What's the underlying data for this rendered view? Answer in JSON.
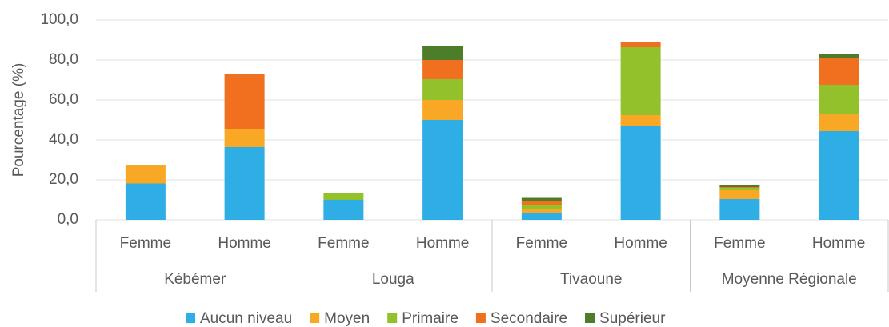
{
  "chart_data": {
    "type": "stacked_bar",
    "y_label": "Pourcentage (%)",
    "categories": [
      "Femme",
      "Homme",
      "Femme",
      "Homme",
      "Femme",
      "Homme",
      "Femme",
      "Homme"
    ],
    "groups": [
      "Kébémer",
      "Louga",
      "Tivaoune",
      "Moyenne Régionale"
    ],
    "series": [
      {
        "name": "Aucun niveau",
        "color": "#2eaee4",
        "values": [
          18.2,
          36.4,
          10,
          50,
          3.2,
          46.8,
          10.4,
          44.4
        ]
      },
      {
        "name": "Moyen",
        "color": "#f9a825",
        "values": [
          9.1,
          9.2,
          0,
          10,
          2,
          5.6,
          4.4,
          8.4
        ]
      },
      {
        "name": "Primaire",
        "color": "#92c12c",
        "values": [
          0,
          0,
          3.2,
          10.4,
          2,
          34,
          1.2,
          14.8
        ]
      },
      {
        "name": "Secondaire",
        "color": "#f07020",
        "values": [
          0,
          27.2,
          0,
          9.6,
          2,
          2.8,
          0.4,
          13.2
        ]
      },
      {
        "name": "Supérieur",
        "color": "#4e7d2a",
        "values": [
          0,
          0,
          0,
          6.8,
          1.8,
          0,
          0.8,
          2.4
        ]
      }
    ],
    "ylim": [
      0,
      100
    ],
    "yticks": [
      {
        "value": 0,
        "label": "0,0"
      },
      {
        "value": 20,
        "label": "20,0"
      },
      {
        "value": 40,
        "label": "40,0"
      },
      {
        "value": 60,
        "label": "60,0"
      },
      {
        "value": 80,
        "label": "80,0"
      },
      {
        "value": 100,
        "label": "100,0"
      }
    ],
    "grid": true,
    "legend": "bottom"
  }
}
